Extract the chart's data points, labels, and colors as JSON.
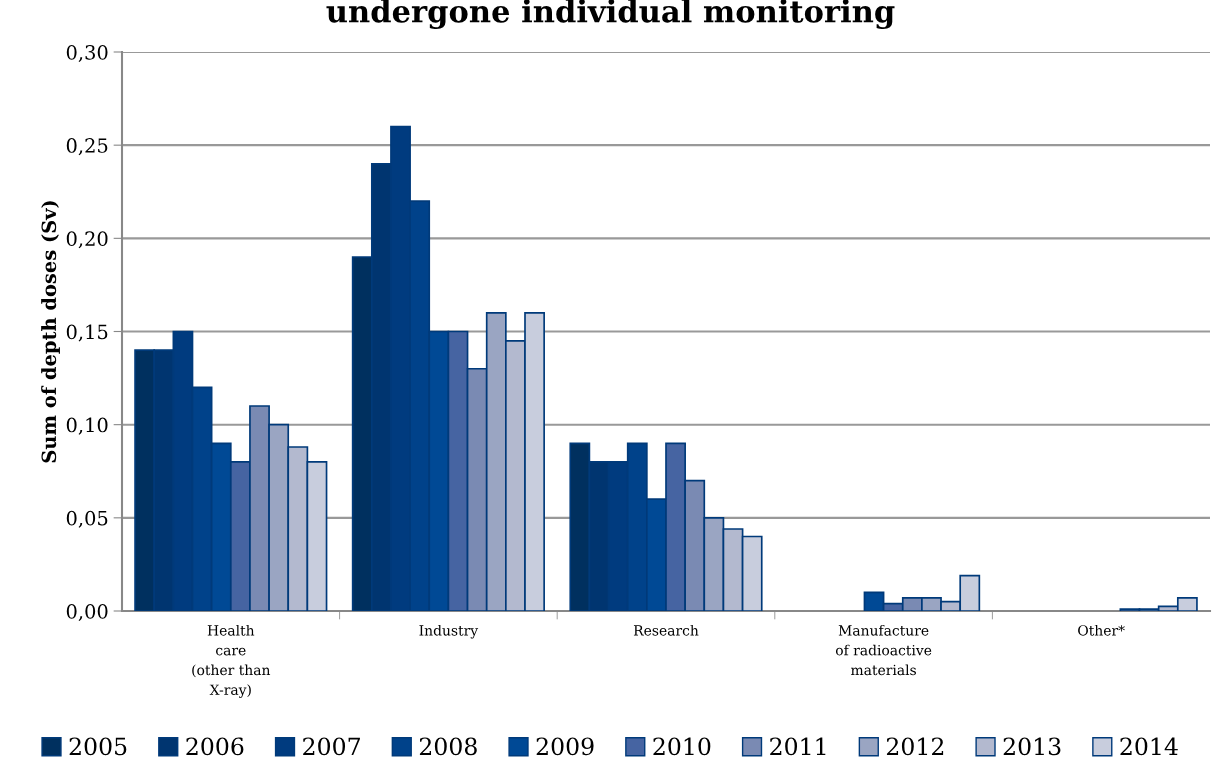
{
  "chart_data": {
    "type": "bar",
    "title": "undergone individual monitoring",
    "ylabel": "Sum of depth doses (Sv)",
    "categories": [
      "Health\ncare\n(other than\nX-ray)",
      "Industry",
      "Research",
      "Manufacture\nof radioactive\nmaterials",
      "Other*"
    ],
    "series": [
      {
        "name": "2005",
        "color": "#00305f",
        "values": [
          0.14,
          0.19,
          0.09,
          null,
          null
        ]
      },
      {
        "name": "2006",
        "color": "#003570",
        "values": [
          0.14,
          0.24,
          0.08,
          null,
          null
        ]
      },
      {
        "name": "2007",
        "color": "#003b7f",
        "values": [
          0.15,
          0.26,
          0.08,
          null,
          null
        ]
      },
      {
        "name": "2008",
        "color": "#00428a",
        "values": [
          0.12,
          0.22,
          0.09,
          null,
          null
        ]
      },
      {
        "name": "2009",
        "color": "#004995",
        "values": [
          0.09,
          0.15,
          0.06,
          0.01,
          null
        ]
      },
      {
        "name": "2010",
        "color": "#4664a2",
        "values": [
          0.08,
          0.15,
          0.09,
          0.004,
          null
        ]
      },
      {
        "name": "2011",
        "color": "#7a8ab3",
        "values": [
          0.11,
          0.13,
          0.07,
          0.007,
          0.001
        ]
      },
      {
        "name": "2012",
        "color": "#9aa5c2",
        "values": [
          0.1,
          0.16,
          0.05,
          0.007,
          0.001
        ]
      },
      {
        "name": "2013",
        "color": "#b3b9cf",
        "values": [
          0.088,
          0.145,
          0.044,
          0.005,
          0.0025
        ]
      },
      {
        "name": "2014",
        "color": "#c8cddd",
        "values": [
          0.08,
          0.16,
          0.04,
          0.019,
          0.007
        ]
      }
    ],
    "ylim": [
      0,
      0.3
    ],
    "yticks": [
      {
        "value": 0,
        "label": "0,00"
      },
      {
        "value": 0.05,
        "label": "0,05"
      },
      {
        "value": 0.1,
        "label": "0,10"
      },
      {
        "value": 0.15,
        "label": "0,15"
      },
      {
        "value": 0.2,
        "label": "0,20"
      },
      {
        "value": 0.25,
        "label": "0,25"
      },
      {
        "value": 0.3,
        "label": "0,30"
      }
    ],
    "grid": "y",
    "legend": "bottom"
  }
}
